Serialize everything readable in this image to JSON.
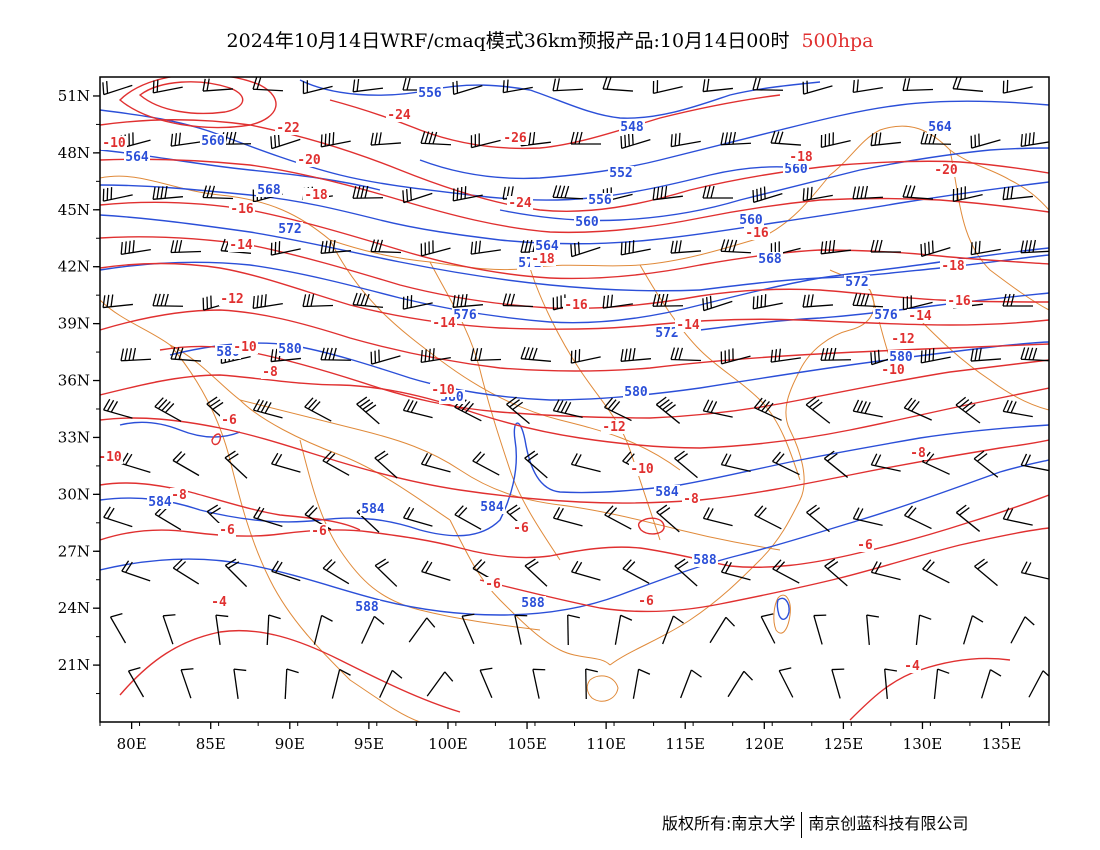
{
  "title": {
    "main": "2024年10月14日WRF/cmaq模式36km预报产品:10月14日00时",
    "level": "500hpa",
    "level_color": "#e03030"
  },
  "footer": {
    "copyright": "版权所有:南京大学",
    "company": "南京创蓝科技有限公司"
  },
  "map": {
    "lon_range": [
      78,
      138
    ],
    "lat_range": [
      18,
      52
    ],
    "x_ticks": [
      "80E",
      "85E",
      "90E",
      "95E",
      "100E",
      "105E",
      "110E",
      "115E",
      "120E",
      "125E",
      "130E",
      "135E"
    ],
    "y_ticks": [
      "51N",
      "48N",
      "45N",
      "42N",
      "39N",
      "36N",
      "33N",
      "30N",
      "27N",
      "24N",
      "21N"
    ],
    "colors": {
      "height": "#2b4fd8",
      "temperature": "#e03030",
      "boundary": "#e08a3a",
      "barb": "#000000"
    },
    "height_labels": [
      "556",
      "548",
      "552",
      "556",
      "560",
      "564",
      "568",
      "572",
      "576",
      "580",
      "584",
      "588"
    ],
    "temp_labels": [
      "-26",
      "-24",
      "-22",
      "-20",
      "-18",
      "-16",
      "-14",
      "-12",
      "-10",
      "-8",
      "-6",
      "-4"
    ]
  }
}
